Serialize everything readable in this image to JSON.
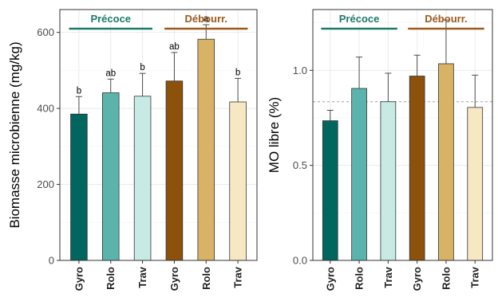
{
  "chart_data": [
    {
      "type": "bar",
      "ylabel": "Biomasse microbienne (mg/kg)",
      "ylim": [
        0,
        660
      ],
      "yticks": [
        0,
        200,
        400,
        600
      ],
      "ytick_labels": [
        "0",
        "200",
        "400",
        "600"
      ],
      "categories": [
        "Gyro",
        "Rolo",
        "Trav",
        "Gyro",
        "Rolo",
        "Trav"
      ],
      "values": [
        385,
        441,
        432,
        472,
        582,
        417
      ],
      "errors": [
        46,
        36,
        60,
        75,
        38,
        62
      ],
      "significance": [
        "b",
        "ab",
        "b",
        "ab",
        "a",
        "b"
      ],
      "colors": [
        "#00665e",
        "#5ab4ac",
        "#c7eae5",
        "#8c510a",
        "#d8b365",
        "#f6e8c3"
      ],
      "groups": [
        {
          "label": "Précoce",
          "color": "#1b7a6a",
          "start": 0,
          "end": 2
        },
        {
          "label": "Débourr.",
          "color": "#9c5a1c",
          "start": 3,
          "end": 5
        }
      ],
      "grid": true
    },
    {
      "type": "bar",
      "ylabel": "MO libre (%)",
      "ylim": [
        0,
        1.32
      ],
      "yticks": [
        0,
        0.5,
        1.0
      ],
      "ytick_labels": [
        "0.0",
        "0.5",
        "1.0"
      ],
      "categories": [
        "Gyro",
        "Rolo",
        "Trav",
        "Gyro",
        "Rolo",
        "Trav"
      ],
      "values": [
        0.735,
        0.905,
        0.835,
        0.97,
        1.035,
        0.805
      ],
      "errors": [
        0.055,
        0.165,
        0.15,
        0.11,
        0.23,
        0.17
      ],
      "reference_line": 0.835,
      "colors": [
        "#00665e",
        "#5ab4ac",
        "#c7eae5",
        "#8c510a",
        "#d8b365",
        "#f6e8c3"
      ],
      "groups": [
        {
          "label": "Précoce",
          "color": "#1b7a6a",
          "start": 0,
          "end": 2
        },
        {
          "label": "Débourr.",
          "color": "#9c5a1c",
          "start": 3,
          "end": 5
        }
      ],
      "grid": true
    }
  ]
}
